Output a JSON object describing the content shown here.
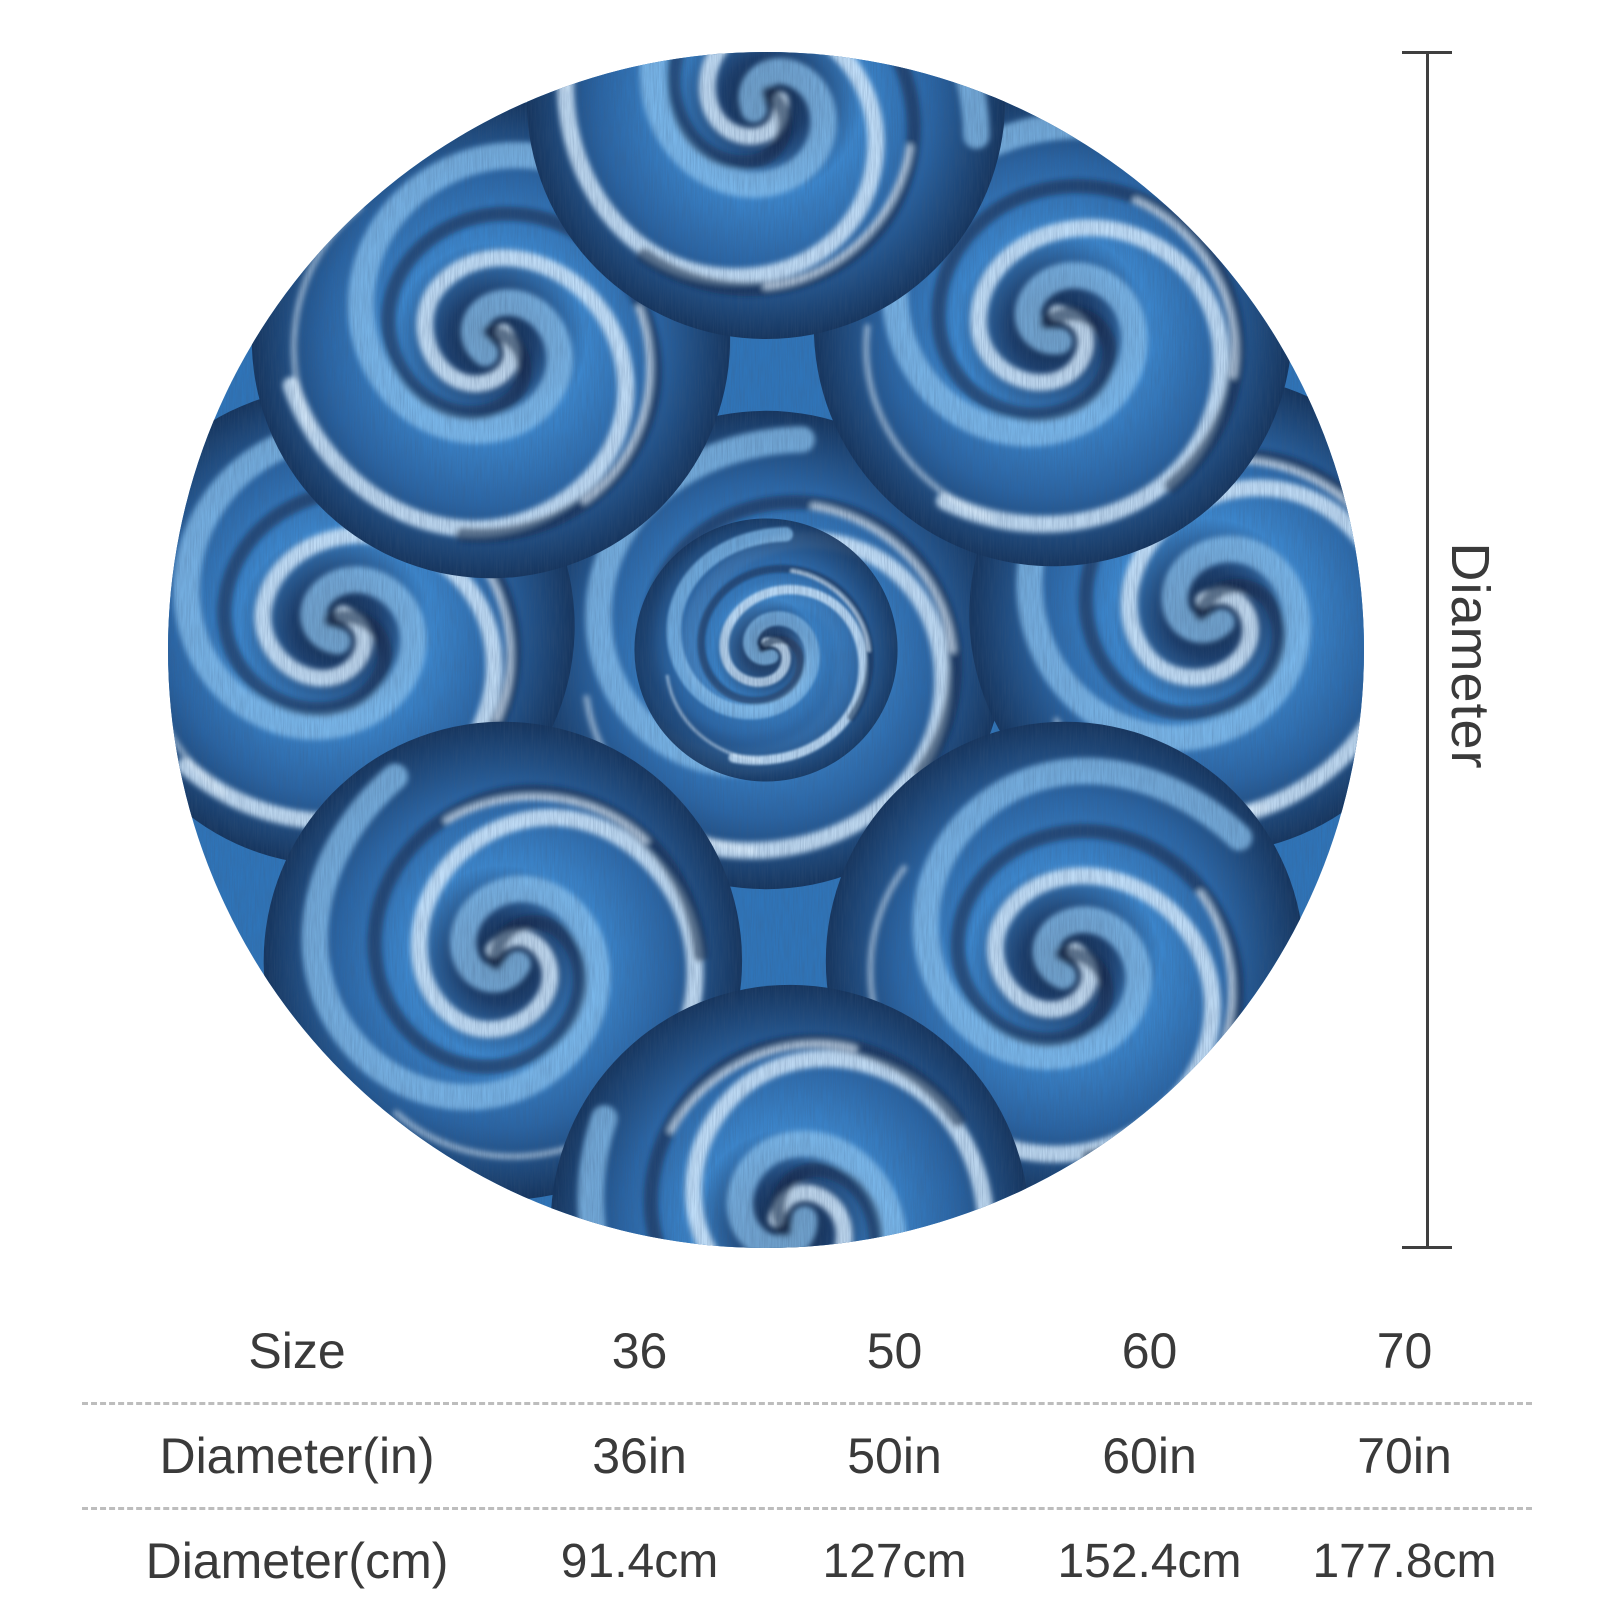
{
  "product": {
    "shape": "round",
    "pattern": "blue swirl",
    "colors": {
      "base": "#2f74b8",
      "light": "#8cc4f2",
      "highlight": "#d6ecff",
      "dark": "#0f2340",
      "shadow": "#16355e"
    }
  },
  "dimension": {
    "label": "Diameter",
    "line_color": "#3f3f3f"
  },
  "size_table": {
    "rows": [
      {
        "header": "Size",
        "values": [
          "36",
          "50",
          "60",
          "70"
        ]
      },
      {
        "header": "Diameter(in)",
        "values": [
          "36in",
          "50in",
          "60in",
          "70in"
        ]
      },
      {
        "header": "Diameter(cm)",
        "values": [
          "91.4cm",
          "127cm",
          "152.4cm",
          "177.8cm"
        ]
      }
    ],
    "divider_color": "#bdbdbd"
  }
}
